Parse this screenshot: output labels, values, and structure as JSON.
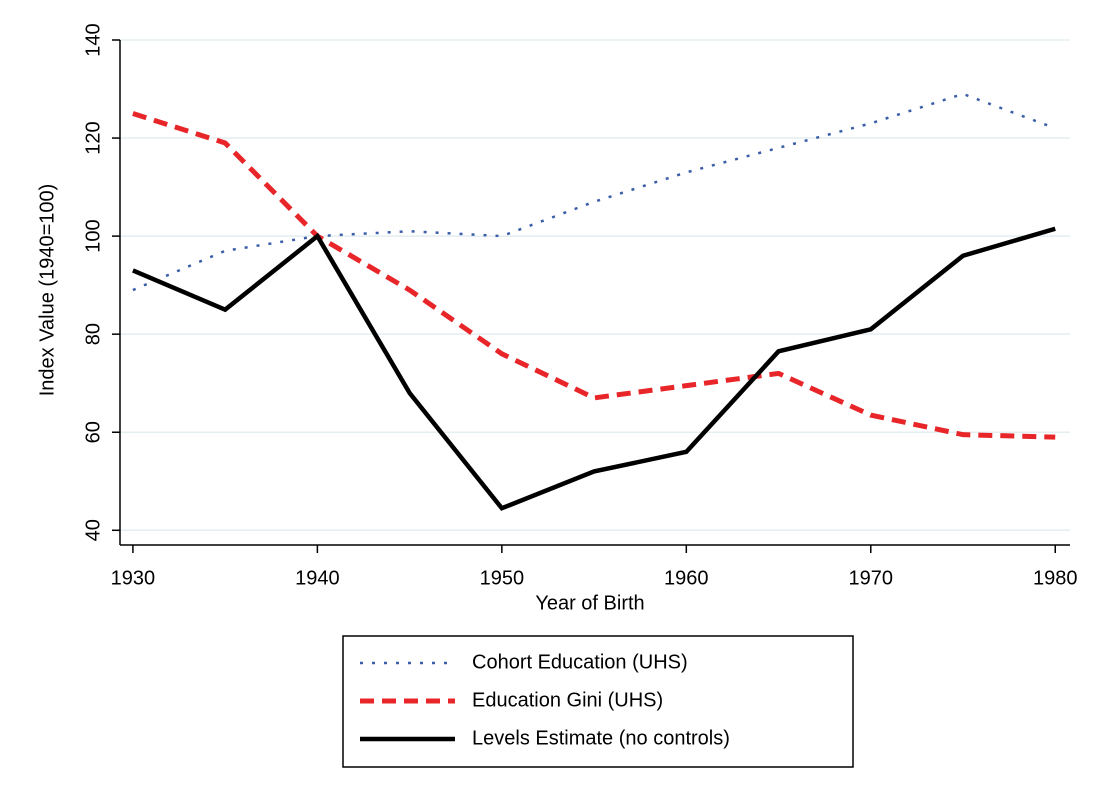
{
  "chart_data": {
    "type": "line",
    "x_label": "Year of Birth",
    "y_label": "Index Value (1940=100)",
    "x": [
      1930,
      1935,
      1940,
      1945,
      1950,
      1955,
      1960,
      1965,
      1970,
      1975,
      1980
    ],
    "series": [
      {
        "name": "Cohort Education (UHS)",
        "color": "#3a5fa8",
        "style": "dotted",
        "values": [
          89,
          97,
          100,
          101,
          100,
          107,
          113,
          118,
          123,
          129,
          122
        ]
      },
      {
        "name": "Education Gini (UHS)",
        "color": "#e8262a",
        "style": "dashed",
        "values": [
          125,
          119,
          100,
          89,
          76,
          67,
          69.5,
          72,
          63.5,
          59.5,
          59
        ]
      },
      {
        "name": "Levels Estimate (no controls)",
        "color": "#000000",
        "style": "solid",
        "values": [
          93,
          85,
          100,
          68,
          44.5,
          52,
          56,
          76.5,
          81,
          96,
          101.5
        ]
      }
    ],
    "xlim": [
      1929.3,
      1980.8
    ],
    "xticks": [
      1930,
      1940,
      1950,
      1960,
      1970,
      1980
    ],
    "ylim": [
      37,
      140
    ],
    "yticks": [
      40,
      60,
      80,
      100,
      120,
      140
    ],
    "grid": true,
    "legend": "bottom"
  }
}
